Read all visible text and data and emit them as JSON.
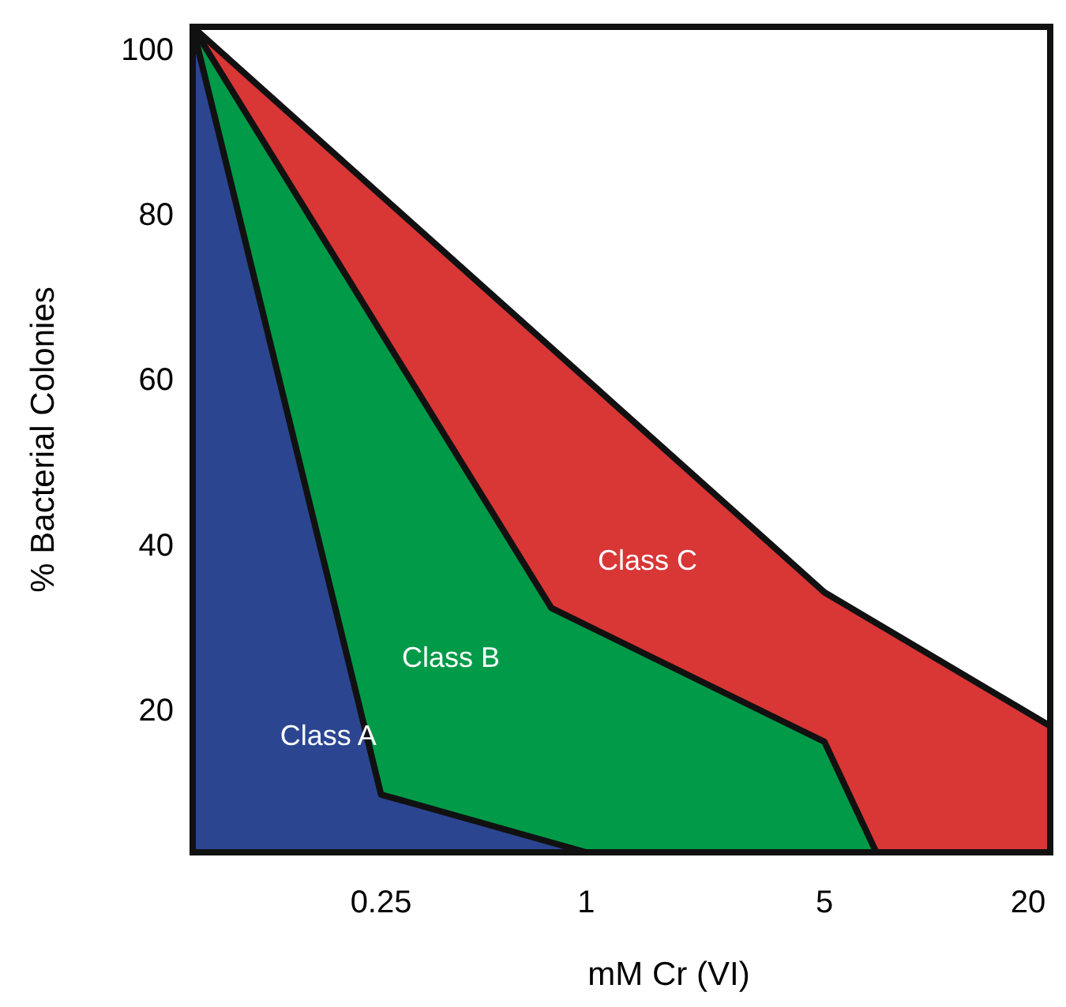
{
  "chart_data": {
    "type": "area",
    "xlabel": "mM Cr (VI)",
    "ylabel": "% Bacterial Colonies",
    "log": "x",
    "xlim": [
      0.07,
      23
    ],
    "xticks": [
      0.25,
      1,
      5,
      20
    ],
    "ylim": [
      3,
      103
    ],
    "yticks": [
      20,
      40,
      60,
      80,
      100
    ],
    "grid": false,
    "legend": false,
    "series": [
      {
        "name": "Class C",
        "color": "#d93636",
        "x": [
          0.07,
          5,
          23
        ],
        "values": [
          103,
          34.5,
          18.3
        ]
      },
      {
        "name": "Class B",
        "color": "#019a48",
        "x": [
          0.07,
          0.79,
          5,
          7.1
        ],
        "values": [
          103,
          32.6,
          16.4,
          3
        ]
      },
      {
        "name": "Class A",
        "color": "#2b4591",
        "x": [
          0.07,
          0.25,
          1
        ],
        "values": [
          103,
          10,
          3
        ]
      }
    ]
  }
}
